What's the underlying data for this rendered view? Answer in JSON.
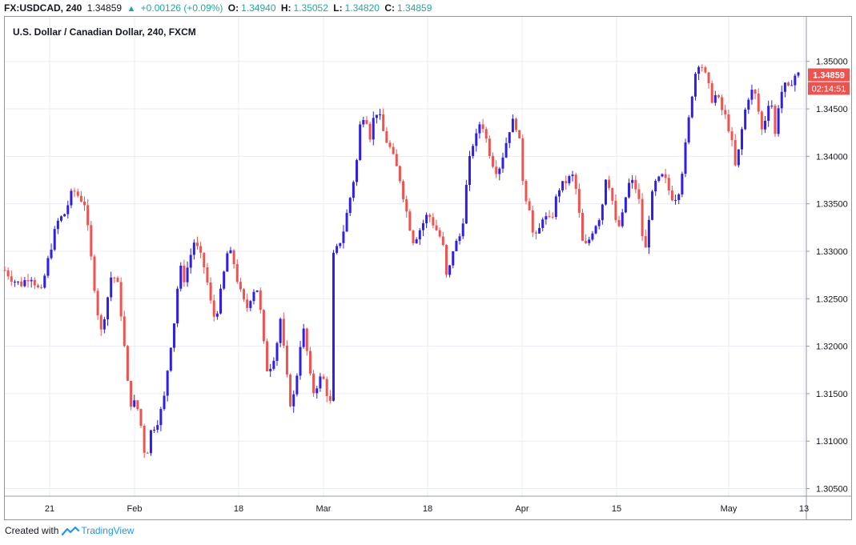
{
  "header": {
    "symbol": "FX:USDCAD, 240",
    "last": "1.34859",
    "change": "+0.00126 (+0.09%)",
    "o_label": "O:",
    "o_value": "1.34940",
    "h_label": "H:",
    "h_value": "1.35052",
    "l_label": "L:",
    "l_value": "1.34820",
    "c_label": "C:",
    "c_value": "1.34859"
  },
  "colors": {
    "up": "#2e1fe8",
    "down": "#ef5350",
    "grid": "#e8ecf3",
    "price_tag": "#ef5350",
    "brand": "#2196f3"
  },
  "footer": {
    "created_with": "Created with",
    "brand": "TradingView"
  },
  "chart_data": {
    "type": "candlestick",
    "title": "U.S. Dollar / Canadian Dollar, 240, FXCM",
    "x_labels": [
      "21",
      "Feb",
      "18",
      "Mar",
      "18",
      "Apr",
      "15",
      "May",
      "13"
    ],
    "y_ticks": [
      "1.35000",
      "1.34500",
      "1.34000",
      "1.33500",
      "1.33000",
      "1.32500",
      "1.32000",
      "1.31500",
      "1.31000",
      "1.30500"
    ],
    "ylim": [
      1.3042,
      1.3547
    ],
    "grid": true,
    "last_price_label": "1.34859",
    "countdown_label": "02:14:51",
    "close_path": [
      [
        0,
        1.328
      ],
      [
        0.01,
        1.327
      ],
      [
        0.02,
        1.3265
      ],
      [
        0.032,
        1.3275
      ],
      [
        0.045,
        1.3255
      ],
      [
        0.055,
        1.3295
      ],
      [
        0.065,
        1.333
      ],
      [
        0.075,
        1.334
      ],
      [
        0.085,
        1.3365
      ],
      [
        0.095,
        1.3355
      ],
      [
        0.1,
        1.335
      ],
      [
        0.108,
        1.329
      ],
      [
        0.115,
        1.324
      ],
      [
        0.12,
        1.3215
      ],
      [
        0.126,
        1.324
      ],
      [
        0.133,
        1.3275
      ],
      [
        0.14,
        1.327
      ],
      [
        0.147,
        1.322
      ],
      [
        0.152,
        1.317
      ],
      [
        0.156,
        1.314
      ],
      [
        0.162,
        1.314
      ],
      [
        0.168,
        1.313
      ],
      [
        0.172,
        1.31
      ],
      [
        0.176,
        1.308
      ],
      [
        0.182,
        1.311
      ],
      [
        0.19,
        1.312
      ],
      [
        0.198,
        1.314
      ],
      [
        0.205,
        1.319
      ],
      [
        0.212,
        1.323
      ],
      [
        0.218,
        1.3285
      ],
      [
        0.224,
        1.327
      ],
      [
        0.23,
        1.329
      ],
      [
        0.236,
        1.331
      ],
      [
        0.242,
        1.33
      ],
      [
        0.25,
        1.328
      ],
      [
        0.255,
        1.3255
      ],
      [
        0.26,
        1.323
      ],
      [
        0.266,
        1.324
      ],
      [
        0.272,
        1.327
      ],
      [
        0.278,
        1.33
      ],
      [
        0.284,
        1.3295
      ],
      [
        0.29,
        1.327
      ],
      [
        0.296,
        1.325
      ],
      [
        0.302,
        1.324
      ],
      [
        0.308,
        1.3255
      ],
      [
        0.314,
        1.3265
      ],
      [
        0.32,
        1.323
      ],
      [
        0.326,
        1.3175
      ],
      [
        0.332,
        1.318
      ],
      [
        0.338,
        1.3195
      ],
      [
        0.344,
        1.323
      ],
      [
        0.35,
        1.318
      ],
      [
        0.356,
        1.314
      ],
      [
        0.362,
        1.315
      ],
      [
        0.368,
        1.32
      ],
      [
        0.374,
        1.322
      ],
      [
        0.378,
        1.3185
      ],
      [
        0.384,
        1.315
      ],
      [
        0.39,
        1.316
      ],
      [
        0.396,
        1.317
      ],
      [
        0.402,
        1.315
      ],
      [
        0.406,
        1.314
      ],
      [
        0.41,
        1.3295
      ],
      [
        0.416,
        1.3305
      ],
      [
        0.422,
        1.332
      ],
      [
        0.428,
        1.3345
      ],
      [
        0.434,
        1.337
      ],
      [
        0.44,
        1.34
      ],
      [
        0.444,
        1.344
      ],
      [
        0.45,
        1.3445
      ],
      [
        0.456,
        1.342
      ],
      [
        0.462,
        1.345
      ],
      [
        0.468,
        1.344
      ],
      [
        0.474,
        1.342
      ],
      [
        0.48,
        1.341
      ],
      [
        0.486,
        1.3395
      ],
      [
        0.492,
        1.338
      ],
      [
        0.498,
        1.3355
      ],
      [
        0.504,
        1.333
      ],
      [
        0.51,
        1.331
      ],
      [
        0.516,
        1.332
      ],
      [
        0.522,
        1.333
      ],
      [
        0.528,
        1.334
      ],
      [
        0.534,
        1.333
      ],
      [
        0.54,
        1.332
      ],
      [
        0.546,
        1.331
      ],
      [
        0.552,
        1.3265
      ],
      [
        0.558,
        1.33
      ],
      [
        0.564,
        1.331
      ],
      [
        0.57,
        1.332
      ],
      [
        0.576,
        1.337
      ],
      [
        0.582,
        1.341
      ],
      [
        0.588,
        1.342
      ],
      [
        0.594,
        1.344
      ],
      [
        0.6,
        1.342
      ],
      [
        0.606,
        1.34
      ],
      [
        0.612,
        1.3385
      ],
      [
        0.618,
        1.339
      ],
      [
        0.624,
        1.341
      ],
      [
        0.63,
        1.343
      ],
      [
        0.636,
        1.344
      ],
      [
        0.642,
        1.3415
      ],
      [
        0.648,
        1.336
      ],
      [
        0.654,
        1.335
      ],
      [
        0.66,
        1.331
      ],
      [
        0.666,
        1.332
      ],
      [
        0.672,
        1.334
      ],
      [
        0.678,
        1.333
      ],
      [
        0.684,
        1.334
      ],
      [
        0.69,
        1.3365
      ],
      [
        0.696,
        1.337
      ],
      [
        0.702,
        1.3375
      ],
      [
        0.708,
        1.338
      ],
      [
        0.714,
        1.336
      ],
      [
        0.72,
        1.331
      ],
      [
        0.726,
        1.3305
      ],
      [
        0.732,
        1.332
      ],
      [
        0.738,
        1.333
      ],
      [
        0.744,
        1.334
      ],
      [
        0.75,
        1.338
      ],
      [
        0.756,
        1.3365
      ],
      [
        0.762,
        1.333
      ],
      [
        0.768,
        1.3325
      ],
      [
        0.774,
        1.3355
      ],
      [
        0.78,
        1.3375
      ],
      [
        0.786,
        1.337
      ],
      [
        0.792,
        1.335
      ],
      [
        0.798,
        1.329
      ],
      [
        0.804,
        1.334
      ],
      [
        0.81,
        1.337
      ],
      [
        0.816,
        1.3375
      ],
      [
        0.822,
        1.338
      ],
      [
        0.828,
        1.3365
      ],
      [
        0.834,
        1.3355
      ],
      [
        0.84,
        1.336
      ],
      [
        0.846,
        1.339
      ],
      [
        0.852,
        1.343
      ],
      [
        0.858,
        1.347
      ],
      [
        0.864,
        1.35
      ],
      [
        0.87,
        1.3495
      ],
      [
        0.876,
        1.348
      ],
      [
        0.882,
        1.346
      ],
      [
        0.888,
        1.3465
      ],
      [
        0.894,
        1.345
      ],
      [
        0.9,
        1.344
      ],
      [
        0.906,
        1.342
      ],
      [
        0.912,
        1.3385
      ],
      [
        0.918,
        1.342
      ],
      [
        0.924,
        1.345
      ],
      [
        0.93,
        1.347
      ],
      [
        0.936,
        1.3465
      ],
      [
        0.942,
        1.344
      ],
      [
        0.946,
        1.342
      ],
      [
        0.95,
        1.345
      ],
      [
        0.956,
        1.3465
      ],
      [
        0.96,
        1.3415
      ],
      [
        0.966,
        1.346
      ],
      [
        0.972,
        1.3475
      ],
      [
        0.978,
        1.347
      ],
      [
        0.984,
        1.3485
      ],
      [
        0.99,
        1.3486
      ]
    ]
  }
}
